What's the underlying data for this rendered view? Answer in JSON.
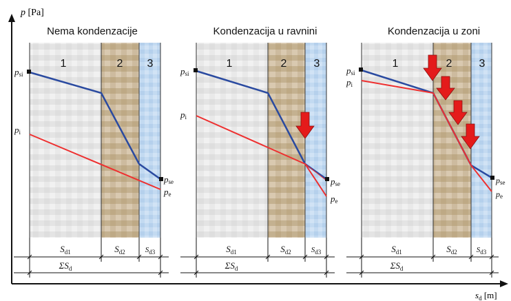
{
  "axes": {
    "y_label": "p [Pa]",
    "x_label": "s_d [m]"
  },
  "colors": {
    "saturation_line": "#2a4aa0",
    "partial_pressure_line": "#ee2f2f",
    "arrow": "#e41b1b",
    "layer1": "#e2e2e2",
    "layer2": "#c8b59a",
    "layer3": "#bcd6f0"
  },
  "panels": [
    {
      "title": "Nema kondenzacije",
      "layers": [
        "1",
        "2",
        "3"
      ],
      "left_labels": [
        "p_si",
        "p_i"
      ],
      "right_labels": [
        "p_se",
        "p_e"
      ],
      "dimension_labels": [
        "S_d1",
        "S_d2",
        "S_d3"
      ],
      "total_label": "ΣS_d",
      "arrows": 0
    },
    {
      "title": "Kondenzacija u ravnini",
      "layers": [
        "1",
        "2",
        "3"
      ],
      "left_labels": [
        "p_si",
        "p_i"
      ],
      "right_labels": [
        "p_se",
        "p_e"
      ],
      "dimension_labels": [
        "S_d1",
        "S_d2",
        "S_d3"
      ],
      "total_label": "ΣS_d",
      "arrows": 1
    },
    {
      "title": "Kondenzacija u zoni",
      "layers": [
        "1",
        "2",
        "3"
      ],
      "left_labels": [
        "p_si",
        "p_i"
      ],
      "right_labels": [
        "p_se",
        "p_e"
      ],
      "dimension_labels": [
        "S_d1",
        "S_d2",
        "S_d3"
      ],
      "total_label": "ΣS_d",
      "arrows": 4
    }
  ]
}
